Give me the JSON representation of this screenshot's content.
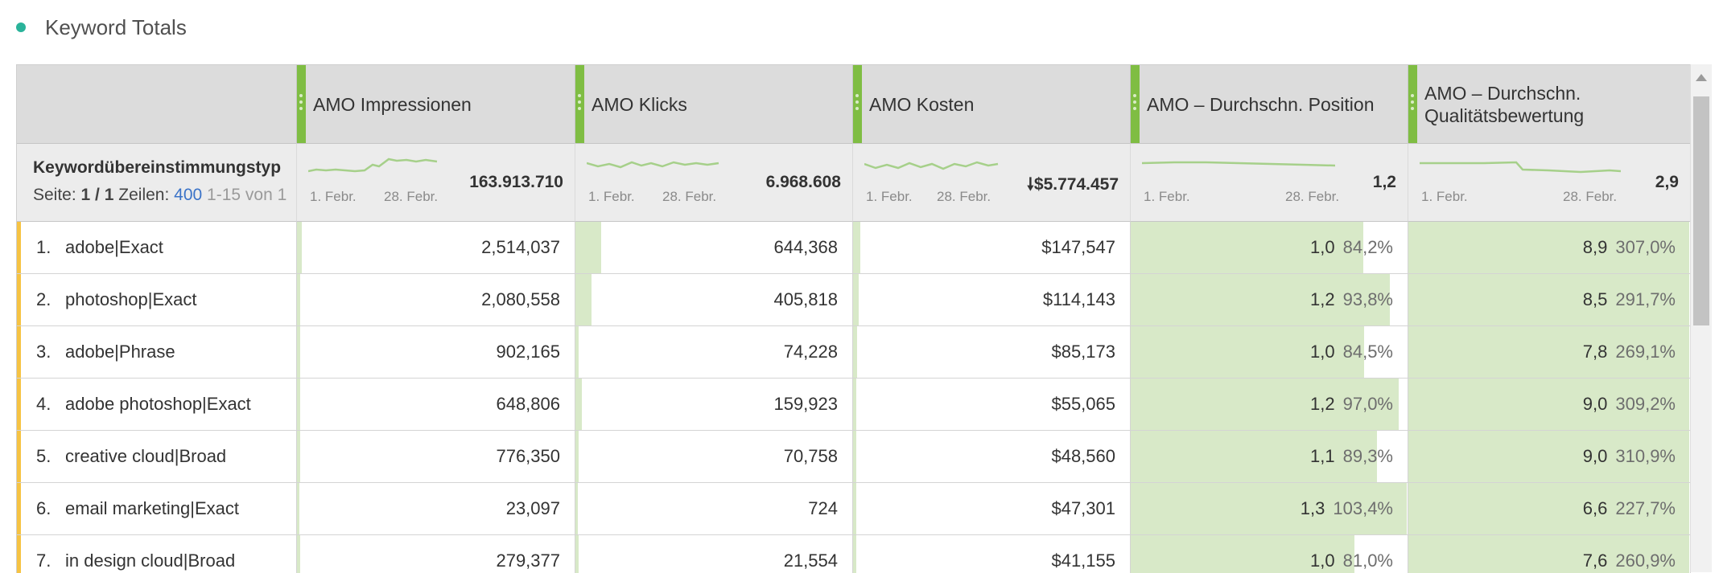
{
  "panel": {
    "title": "Keyword Totals",
    "dot_color": "#2ab39a"
  },
  "columns": [
    {
      "label": "AMO Impressionen",
      "total": "163.913.710",
      "date_start": "1. Febr.",
      "date_end": "28. Febr.",
      "sort_icon": ""
    },
    {
      "label": "AMO Klicks",
      "total": "6.968.608",
      "date_start": "1. Febr.",
      "date_end": "28. Febr.",
      "sort_icon": ""
    },
    {
      "label": "AMO Kosten",
      "total": "$5.774.457",
      "date_start": "1. Febr.",
      "date_end": "28. Febr.",
      "sort_icon": "sort-descending-icon"
    },
    {
      "label": "AMO – Durchschn. Position",
      "total": "1,2",
      "date_start": "1. Febr.",
      "date_end": "28. Febr.",
      "sort_icon": ""
    },
    {
      "label": "AMO – Durchschn. Qualitätsbewertung",
      "total": "2,9",
      "date_start": "1. Febr.",
      "date_end": "28. Febr.",
      "sort_icon": ""
    }
  ],
  "dimension": {
    "label": "Keywordübereinstimmungstyp",
    "page_label": "Seite:",
    "page_value": "1 / 1",
    "rows_label": "Zeilen:",
    "rows_value": "400",
    "range_text": "1-15 von 1"
  },
  "rows": [
    {
      "num": "1.",
      "keyword": "adobe|Exact",
      "impressions": "2,514,037",
      "imp_share": 0.016,
      "clicks": "644,368",
      "clk_share": 0.092,
      "cost": "$147,547",
      "cost_share": 0.026,
      "position": "1,0",
      "position_pct": "84,2%",
      "pos_share": 0.842,
      "quality": "8,9",
      "quality_pct": "307,0%",
      "q_share": 1.0
    },
    {
      "num": "2.",
      "keyword": "photoshop|Exact",
      "impressions": "2,080,558",
      "imp_share": 0.013,
      "clicks": "405,818",
      "clk_share": 0.058,
      "cost": "$114,143",
      "cost_share": 0.02,
      "position": "1,2",
      "position_pct": "93,8%",
      "pos_share": 0.938,
      "quality": "8,5",
      "quality_pct": "291,7%",
      "q_share": 1.0
    },
    {
      "num": "3.",
      "keyword": "adobe|Phrase",
      "impressions": "902,165",
      "imp_share": 0.006,
      "clicks": "74,228",
      "clk_share": 0.011,
      "cost": "$85,173",
      "cost_share": 0.015,
      "position": "1,0",
      "position_pct": "84,5%",
      "pos_share": 0.845,
      "quality": "7,8",
      "quality_pct": "269,1%",
      "q_share": 1.0
    },
    {
      "num": "4.",
      "keyword": "adobe photoshop|Exact",
      "impressions": "648,806",
      "imp_share": 0.004,
      "clicks": "159,923",
      "clk_share": 0.023,
      "cost": "$55,065",
      "cost_share": 0.01,
      "position": "1,2",
      "position_pct": "97,0%",
      "pos_share": 0.97,
      "quality": "9,0",
      "quality_pct": "309,2%",
      "q_share": 1.0
    },
    {
      "num": "5.",
      "keyword": "creative cloud|Broad",
      "impressions": "776,350",
      "imp_share": 0.005,
      "clicks": "70,758",
      "clk_share": 0.01,
      "cost": "$48,560",
      "cost_share": 0.008,
      "position": "1,1",
      "position_pct": "89,3%",
      "pos_share": 0.893,
      "quality": "9,0",
      "quality_pct": "310,9%",
      "q_share": 1.0
    },
    {
      "num": "6.",
      "keyword": "email marketing|Exact",
      "impressions": "23,097",
      "imp_share": 0.0,
      "clicks": "724",
      "clk_share": 0.0,
      "cost": "$47,301",
      "cost_share": 0.008,
      "position": "1,3",
      "position_pct": "103,4%",
      "pos_share": 1.0,
      "quality": "6,6",
      "quality_pct": "227,7%",
      "q_share": 1.0
    },
    {
      "num": "7.",
      "keyword": "in design cloud|Broad",
      "impressions": "279,377",
      "imp_share": 0.002,
      "clicks": "21,554",
      "clk_share": 0.003,
      "cost": "$41,155",
      "cost_share": 0.007,
      "position": "1,0",
      "position_pct": "81,0%",
      "pos_share": 0.81,
      "quality": "7,6",
      "quality_pct": "260,9%",
      "q_share": 1.0
    }
  ],
  "colors": {
    "grip": "#7fbd43",
    "bar": "#d8e9c8",
    "row_accent": "#f6c343",
    "link": "#3b73c8",
    "sparkline": "#a6d08a"
  }
}
